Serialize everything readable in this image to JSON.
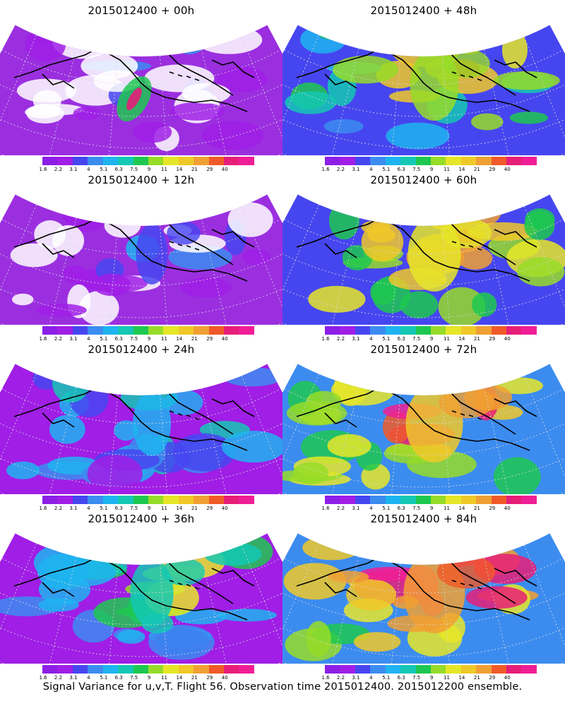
{
  "caption": "Signal Variance for u,v,T. Flight 56. Observation time 2015012400. 2015012200 ensemble.",
  "colorbar": {
    "labels": [
      "1.6",
      "2.2",
      "3.1",
      "4",
      "5.1",
      "6.3",
      "7.5",
      "9",
      "11",
      "14",
      "21",
      "29",
      "40"
    ],
    "colors": [
      "#8c1ee6",
      "#a01ee6",
      "#4646f0",
      "#3c8cf0",
      "#1eb4f0",
      "#14c8b4",
      "#1ec850",
      "#96dc28",
      "#e6e628",
      "#f0c828",
      "#f0a032",
      "#f05a28",
      "#e61e78",
      "#f01e96"
    ]
  },
  "panels": [
    {
      "title": "2015012400 + 00h",
      "level": 0.0
    },
    {
      "title": "2015012400 + 48h",
      "level": 0.55
    },
    {
      "title": "2015012400 + 12h",
      "level": 0.15
    },
    {
      "title": "2015012400 + 60h",
      "level": 0.65
    },
    {
      "title": "2015012400 + 24h",
      "level": 0.3
    },
    {
      "title": "2015012400 + 72h",
      "level": 0.75
    },
    {
      "title": "2015012400 + 36h",
      "level": 0.42
    },
    {
      "title": "2015012400 + 84h",
      "level": 0.85
    }
  ]
}
